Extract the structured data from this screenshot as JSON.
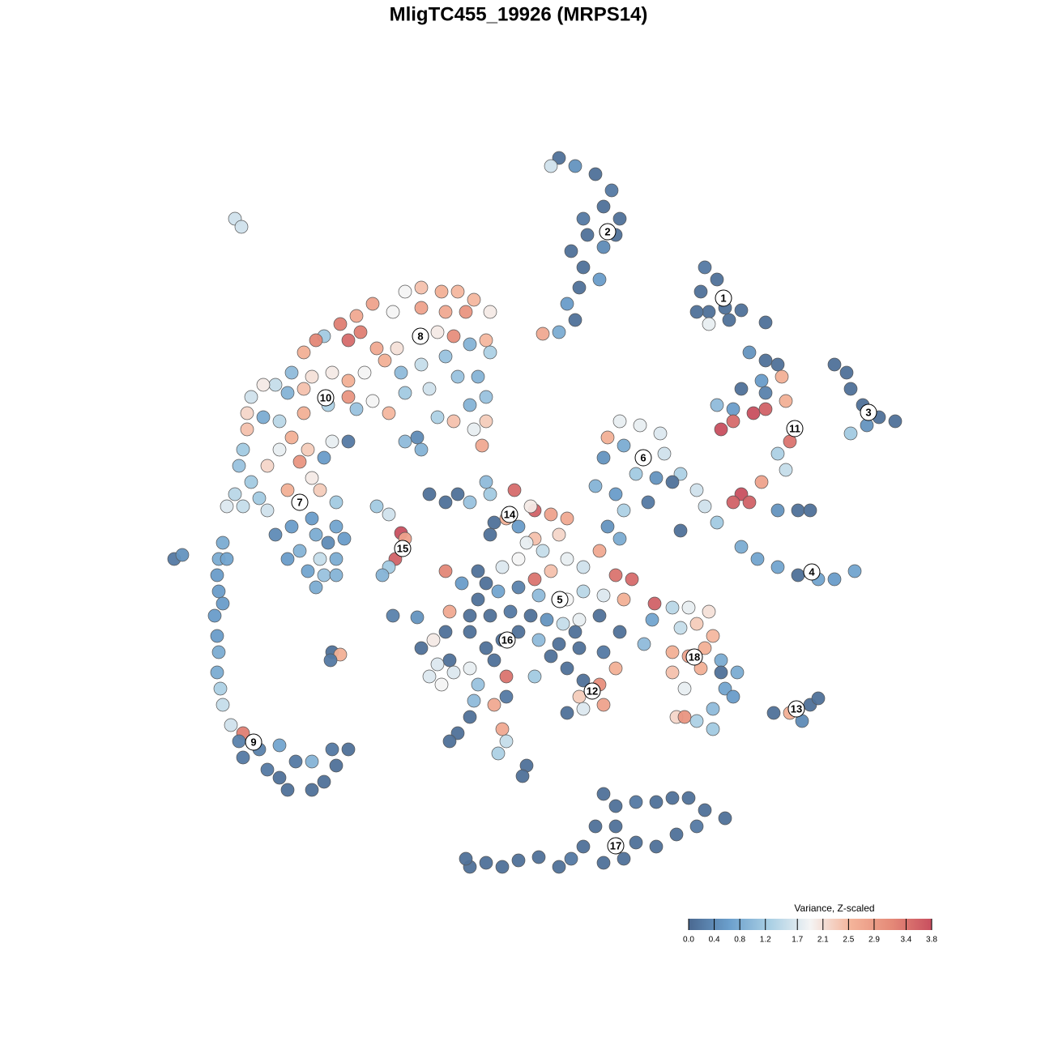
{
  "chart_data": {
    "type": "scatter",
    "title": "MligTC455_19926 (MRPS14)",
    "colorbar_title": "Variance, Z-scaled",
    "clim": [
      0,
      3.8
    ],
    "colors": [
      "#4a6890",
      "#6b9fcc",
      "#a9cfe4",
      "#f4f4f4",
      "#f4b49a",
      "#e58a78",
      "#c84f5f"
    ],
    "cticks": [
      {
        "value": 0,
        "label": "0.0"
      },
      0.4,
      0.8,
      1.2,
      1.7,
      2.1,
      2.5,
      2.9,
      3.4,
      3.8
    ],
    "x": [
      5,
      7,
      9.5,
      11.5,
      10.5,
      12.5,
      12,
      10.5,
      8.5,
      8,
      6.5,
      8,
      10,
      7.5,
      6,
      7,
      5,
      3,
      4,
      23,
      24.5,
      22.5,
      25.5,
      23.5,
      22,
      27.5,
      26,
      23.5,
      30.5,
      39,
      40.5,
      41,
      42.5,
      44.5,
      46.5,
      43,
      41,
      28.5,
      30.5,
      32,
      30,
      32.5,
      27.5,
      30.5,
      24.5,
      26.5,
      29,
      30.5,
      25,
      26.5,
      33,
      33.5,
      32,
      33,
      30,
      27.5,
      26.5,
      28.5,
      32,
      34.5,
      36,
      22,
      23,
      24.5,
      27.5,
      29.5,
      32,
      34.5,
      37,
      39,
      41.5,
      20,
      12.5,
      15,
      17.5,
      11,
      13,
      18,
      10.5,
      14.5,
      17,
      20,
      9.5,
      12,
      16,
      13,
      19,
      11,
      12.5,
      -14,
      -12,
      -9.5,
      -7.5,
      -5.5,
      -3.5,
      -6.5,
      -9,
      -12,
      -15.5,
      -18,
      -20,
      -22,
      -24,
      -25,
      -26.5,
      -21,
      -19.5,
      -17.5,
      -15,
      -10,
      -8,
      -6,
      -4,
      -3.5,
      -9,
      -12,
      -14.5,
      -16.5,
      -19,
      -21,
      -23,
      -25.5,
      -28,
      -30,
      -31.5,
      -33,
      -28.5,
      -26.5,
      -21,
      -18,
      -14,
      -11,
      -7.5,
      -5,
      -4,
      -6,
      -8,
      -4,
      -5.5,
      -4.5,
      -10,
      -16,
      -20,
      -23.5,
      -26.5,
      -29.5,
      -33.5,
      -33.5,
      -31.5,
      -28,
      -26,
      -23,
      -21,
      -24,
      -27,
      -29.5,
      -31,
      -34,
      -34.5,
      -33,
      -35,
      -36,
      -34,
      -32,
      -28.5,
      -25.5,
      -24.5,
      -31,
      -14,
      -12.5,
      -12,
      -25.5,
      -28,
      -30,
      -25,
      -22.5,
      -21.5,
      -23.5,
      -27,
      -24.5,
      -22.5,
      -26,
      -24,
      -25,
      -22.5,
      -28.5,
      -22.5,
      -36.5,
      -37,
      -36,
      -37.2,
      -37,
      -36.5,
      -37.5,
      -37.2,
      -37,
      -37.2,
      -36.8,
      -36.5,
      -35.5,
      -34,
      -34.5,
      -34,
      -32,
      -29.5,
      -31,
      -29.5,
      -27.5,
      -25.5,
      -23,
      -21,
      -22.5,
      -24,
      -25.5,
      -28.5,
      -42.5,
      -41.5,
      -35,
      -34.2,
      -17.5,
      -16,
      -14.5,
      -14,
      -15.2,
      -16,
      -16.8,
      -11,
      -9,
      -7.5,
      -4,
      -3.5,
      -0.5,
      2,
      4,
      6,
      1.5,
      -3,
      -1.5,
      2,
      5,
      -3.5,
      0,
      -6,
      -9,
      -5,
      -2,
      0,
      2,
      4,
      6,
      8,
      10,
      12,
      14,
      13,
      10.5,
      8,
      6,
      2.5,
      0,
      -2.5,
      -5,
      -7,
      -8.5,
      -6,
      -3.5,
      -1,
      1.5,
      3.5,
      5.5,
      7.5,
      10,
      16.8,
      19,
      16.5,
      -12,
      -10,
      -8,
      -6,
      -4,
      -2,
      0,
      2.5,
      5,
      7.5,
      10.5,
      12.5,
      15.5,
      -11,
      -8.5,
      -5,
      -1.5,
      2,
      6,
      8,
      10,
      12,
      10.5,
      7.5,
      6,
      8,
      -1.5,
      -3,
      -5.5,
      -6,
      -2,
      -1.5,
      -2.5,
      -7.5,
      -8.5,
      1,
      0.5,
      -15.5,
      -12.5,
      -23,
      -22,
      -23.2,
      -4,
      -6,
      -3,
      4,
      7,
      -9,
      1,
      3,
      -10.5,
      -9.5,
      21,
      23.5,
      22,
      20,
      24,
      19,
      21,
      23,
      25,
      27,
      19,
      22.5,
      20.5,
      25.5,
      26.5,
      24,
      19.5,
      20.5,
      22,
      24,
      25,
      31.5,
      34.5,
      36,
      37,
      35,
      33.5,
      10.5,
      12,
      14.5,
      17,
      19,
      21,
      23,
      25.5,
      22,
      19.5,
      17,
      14.5,
      12,
      9.5,
      8,
      10.5,
      13,
      6.5,
      5,
      2.5,
      0,
      -2,
      -4,
      -6,
      -6.5
    ],
    "y": [
      44.5,
      43.5,
      42.5,
      40.5,
      38.5,
      37,
      35,
      33.5,
      35,
      37,
      33,
      31,
      29.5,
      28.5,
      26.5,
      24.5,
      23,
      22.8,
      43.5,
      31,
      29.5,
      28,
      26,
      25.5,
      25.5,
      25.7,
      24.5,
      24,
      24.2,
      19,
      18,
      16,
      14,
      12.5,
      12,
      11.5,
      10.5,
      20.5,
      19.5,
      19,
      17,
      17.5,
      16,
      15.5,
      14,
      13.5,
      13,
      13.5,
      11,
      12,
      14.5,
      9.5,
      8,
      6,
      4.5,
      3,
      2,
      2,
      1,
      1,
      1,
      3.5,
      1.5,
      -0.5,
      -3.5,
      -5,
      -6,
      -7,
      -7.5,
      -7.5,
      -6.5,
      -1.5,
      12,
      11.5,
      10.5,
      10,
      9,
      8,
      7.5,
      5.5,
      5,
      5.5,
      4,
      3,
      2,
      1,
      4.5,
      -1,
      -2.5,
      28,
      28.5,
      28,
      28,
      27,
      25.5,
      25.5,
      25.5,
      26,
      25.5,
      26.5,
      25,
      24,
      22.5,
      22,
      20.5,
      22,
      23,
      21,
      21,
      23,
      22.5,
      21.5,
      22,
      20.5,
      20,
      19,
      18,
      19.5,
      18,
      17,
      18,
      17.5,
      18,
      16.5,
      16.5,
      15,
      15.5,
      16,
      15,
      14.5,
      15.5,
      16,
      17.5,
      17.5,
      15,
      14,
      12,
      12,
      11,
      9,
      12.5,
      13,
      13.5,
      14,
      13,
      12,
      13,
      11,
      12.5,
      10,
      8.5,
      9.5,
      9.5,
      7.5,
      7,
      8.5,
      6.5,
      8.5,
      6.5,
      4.5,
      3,
      1.5,
      1.5,
      2.5,
      3.5,
      5,
      3.5,
      1,
      9.5,
      10,
      8.5,
      0,
      -1,
      -2,
      -2,
      -1,
      -2.5,
      -3,
      -4,
      -5,
      -5,
      -6.5,
      -7,
      -8.5,
      -7,
      -5,
      2,
      -3,
      -5,
      -5,
      -7,
      -9,
      -10.5,
      -12,
      -14.5,
      -16.5,
      -19,
      -21,
      -23,
      -25.5,
      -26.5,
      -27.5,
      -29.5,
      -28.5,
      -28,
      -31,
      -32,
      -30,
      -30,
      -28.5,
      -28.5,
      -30.5,
      -32.5,
      -33.5,
      -33.5,
      -5,
      -4.5,
      37,
      36,
      1.5,
      0.5,
      -1.8,
      -2.5,
      -5,
      -6,
      -7,
      3,
      2,
      3,
      4.5,
      3,
      3.5,
      1,
      0.5,
      0,
      1.5,
      -0.5,
      0,
      -2.5,
      -2,
      -2,
      -1,
      2,
      -6.5,
      -6.5,
      -6,
      -5,
      -7.5,
      -6.5,
      -5,
      -6,
      -4,
      -7,
      -7.5,
      -10,
      -9.5,
      -9,
      -10,
      -9.5,
      -8.5,
      -9,
      -10,
      -8,
      -11.5,
      -12,
      -12,
      -11.5,
      -12,
      -12.5,
      -13,
      -12.5,
      -12,
      -10.5,
      -11,
      -12.5,
      -16,
      -18,
      -19,
      -18.5,
      -16,
      -15,
      -14,
      -15,
      -15.5,
      -16,
      -16.5,
      -14,
      -15.5,
      -19.5,
      -17.5,
      -20.5,
      -19.5,
      -19.5,
      -18.5,
      -20,
      -20.5,
      -18.5,
      -23,
      -22,
      -24,
      -23.5,
      -22,
      -23,
      -22.5,
      -24.5,
      -26,
      -27.5,
      -29,
      -26.5,
      -27.5,
      -30.5,
      -31.8,
      -12,
      -12.2,
      -16.5,
      -16.8,
      -17.5,
      -8,
      -14,
      -17.5,
      -17,
      -14,
      -14,
      -3,
      -4,
      -15,
      -20.5,
      -11,
      -11.5,
      -13,
      -13.5,
      -14.5,
      -16.5,
      -17,
      -16,
      -17.5,
      -19,
      -19,
      -18.5,
      -21,
      -21,
      -22,
      -23.5,
      -24.5,
      -24.5,
      -25,
      -26,
      -19,
      -24,
      -23.5,
      -23,
      -22.2,
      -25,
      -24,
      -34,
      -35.5,
      -35,
      -35,
      -34.5,
      -34.5,
      -36,
      -37,
      -38,
      -39,
      -40.5,
      -40,
      -38,
      -38,
      -40.5,
      -42.5,
      -42,
      -42,
      -43,
      -41.8,
      -42.2,
      -43,
      -42.5,
      -43,
      -42
    ],
    "values": [
      0.1,
      0.5,
      0.1,
      0.2,
      0.1,
      0.1,
      0.1,
      0.4,
      0.1,
      0.2,
      0.1,
      0.1,
      0.6,
      0.1,
      0.6,
      0.1,
      0.8,
      2.7,
      1.6,
      0.2,
      0.1,
      0.1,
      0.1,
      0.1,
      0.1,
      0.1,
      0.1,
      1.8,
      0.1,
      0.1,
      0.1,
      0.1,
      0.1,
      0.1,
      0.1,
      0.5,
      1.2,
      0.5,
      0.1,
      0.1,
      0.6,
      2.6,
      0.1,
      0.3,
      1.0,
      0.6,
      3.8,
      3.6,
      3.8,
      3.5,
      2.6,
      3.4,
      1.3,
      1.5,
      2.8,
      3.8,
      3.6,
      3.6,
      0.5,
      0.1,
      0.1,
      1.6,
      1.6,
      1.2,
      0.8,
      0.7,
      0.7,
      0.1,
      0.7,
      0.6,
      0.7,
      0.1,
      1.8,
      1.8,
      1.7,
      2.6,
      0.8,
      1.6,
      0.5,
      1.2,
      0.5,
      1.3,
      0.9,
      0.6,
      0.2,
      1.3,
      0.1,
      0.5,
      0.8,
      1.9,
      2.4,
      2.6,
      2.5,
      2.5,
      2.0,
      3.0,
      2.7,
      2.8,
      1.9,
      2.8,
      2.7,
      3.3,
      1.2,
      3.2,
      2.6,
      3.5,
      3.3,
      2.7,
      2.1,
      2.0,
      3.1,
      0.9,
      2.5,
      1.3,
      1.1,
      1.5,
      1.0,
      2.6,
      1.9,
      2.6,
      2.0,
      2.1,
      1.0,
      1.5,
      2.0,
      1.6,
      0.9,
      2.4,
      3.0,
      1.9,
      1.2,
      1.6,
      1.1,
      0.9,
      1.1,
      0.9,
      2.4,
      2.3,
      1.8,
      2.7,
      1.3,
      2.5,
      1.1,
      1.3,
      2.6,
      1.4,
      2.2,
      2.4,
      0.8,
      2.6,
      2.3,
      1.8,
      0.2,
      0.6,
      3.0,
      1.8,
      2.2,
      1.2,
      1.1,
      1.2,
      1.4,
      1.7,
      1.5,
      1.2,
      2.6,
      2.0,
      2.3,
      1.6,
      1.0,
      0.4,
      0.9,
      0.6,
      0.6,
      0.4,
      0.8,
      0.7,
      0.6,
      0.4,
      0.9,
      1.5,
      0.8,
      0.7,
      1.1,
      0.8,
      0.9,
      0.6,
      1.2,
      0.8,
      0.8,
      0.7,
      0.6,
      0.6,
      0.6,
      0.6,
      0.6,
      0.8,
      0.8,
      1.3,
      1.5,
      1.6,
      3.3,
      0.3,
      0.2,
      0.3,
      0.7,
      0.2,
      0.1,
      0.2,
      0.9,
      0.2,
      0.1,
      0.1,
      0.1,
      0.1,
      0.1,
      0.2,
      0.5,
      1.6,
      1.6,
      1.2,
      1.6,
      3.8,
      2.8,
      3.6,
      1.2,
      0.9,
      0.1,
      0.1,
      0.1,
      1.0,
      1.2,
      3.5,
      3.6,
      2.8,
      2.7,
      2.0,
      0.1,
      2.6,
      2.4,
      2.2,
      0.1,
      0.6,
      1.1,
      3.2,
      0.1,
      1.7,
      1.9,
      3.4,
      2.4,
      1.8,
      1.6,
      2.7,
      3.4,
      3.5,
      2.6,
      1.7,
      1.4,
      1.9,
      1.0,
      0.3,
      0.7,
      0.1,
      0.6,
      2.7,
      0.1,
      0.1,
      0.2,
      0.1,
      0.5,
      1.5,
      1.8,
      0.1,
      3.6,
      1.4,
      0.7,
      0.1,
      1.7,
      1.7,
      1.8,
      0.1,
      0.1,
      0.1,
      1.0,
      0.1,
      0.1,
      0.2,
      0.1,
      1.0,
      1.7,
      0.1,
      1.1,
      3.4,
      1.2,
      0.1,
      0.1,
      3.1,
      2.6,
      2.8,
      2.3,
      0.1,
      1.7,
      0.2,
      2.7,
      1.0,
      0.1,
      2.7,
      1.5,
      1.3,
      0.1,
      0.1,
      0.1,
      0.1,
      0.3,
      0.5,
      0.1,
      2.6,
      0.2,
      0.1,
      0.1,
      0.1,
      0.1,
      0.1,
      0.1,
      1.8,
      1.5,
      2.0,
      1.9,
      1.8,
      2.1,
      2.3,
      1.5,
      2.5,
      2.6,
      2.8,
      2.6,
      0.8,
      0.8,
      2.4,
      2.6,
      1.8,
      0.7,
      0.6,
      1.0,
      2.2,
      3.0,
      1.3,
      1.2,
      0.1,
      0.1,
      0.1,
      0.1,
      0.1,
      0.4,
      2.6,
      0.1,
      0.1,
      0.2,
      0.1,
      0.1,
      0.1,
      0.1,
      0.1,
      0.2,
      0.1,
      0.1,
      0.1,
      0.1,
      0.1,
      0.1,
      0.1,
      0.1,
      0.2,
      0.1,
      0.1,
      0.1,
      0.1,
      0.1,
      0.1,
      0.1
    ],
    "cluster_labels": [
      {
        "label": "1",
        "x": 25.3,
        "y": 27.2
      },
      {
        "label": "2",
        "x": 11,
        "y": 35.4
      },
      {
        "label": "3",
        "x": 43.2,
        "y": 13.1
      },
      {
        "label": "4",
        "x": 36.2,
        "y": -6.6
      },
      {
        "label": "5",
        "x": 5.1,
        "y": -10
      },
      {
        "label": "6",
        "x": 15.4,
        "y": 7.5
      },
      {
        "label": "7",
        "x": -27,
        "y": 2
      },
      {
        "label": "8",
        "x": -12.1,
        "y": 22.5
      },
      {
        "label": "9",
        "x": -32.7,
        "y": -27.6
      },
      {
        "label": "10",
        "x": -23.8,
        "y": 14.9
      },
      {
        "label": "11",
        "x": 34.1,
        "y": 11.1
      },
      {
        "label": "12",
        "x": 9.1,
        "y": -21.3
      },
      {
        "label": "13",
        "x": 34.3,
        "y": -23.5
      },
      {
        "label": "14",
        "x": -1.1,
        "y": 0.5
      },
      {
        "label": "15",
        "x": -14.3,
        "y": -3.7
      },
      {
        "label": "16",
        "x": -1.4,
        "y": -15
      },
      {
        "label": "17",
        "x": 12,
        "y": -40.4
      },
      {
        "label": "18",
        "x": 21.7,
        "y": -17.1
      }
    ]
  }
}
